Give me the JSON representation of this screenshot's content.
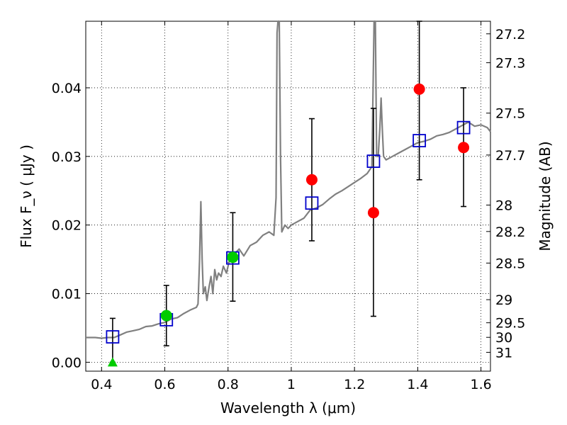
{
  "chart_data": {
    "type": "scatter",
    "title": "",
    "xlabel": "Wavelength  λ (μm)",
    "ylabel": "Flux  F_ν  ( μJy )",
    "y2label": "Magnitude (AB)",
    "xlim": [
      0.35,
      1.63
    ],
    "ylim": [
      -0.0013,
      0.0497
    ],
    "grid": true,
    "x_ticks": [
      {
        "value": 0.4,
        "label": "0.4"
      },
      {
        "value": 0.6,
        "label": "0.6"
      },
      {
        "value": 0.8,
        "label": "0.8"
      },
      {
        "value": 1.0,
        "label": "1"
      },
      {
        "value": 1.2,
        "label": "1.2"
      },
      {
        "value": 1.4,
        "label": "1.4"
      },
      {
        "value": 1.6,
        "label": "1.6"
      }
    ],
    "y_ticks": [
      {
        "value": 0.0,
        "label": "0.00"
      },
      {
        "value": 0.01,
        "label": "0.01"
      },
      {
        "value": 0.02,
        "label": "0.02"
      },
      {
        "value": 0.03,
        "label": "0.03"
      },
      {
        "value": 0.04,
        "label": "0.04"
      }
    ],
    "mag_ticks": [
      {
        "mag": 27.2,
        "label": "27.2"
      },
      {
        "mag": 27.3,
        "label": "27.3"
      },
      {
        "mag": 27.5,
        "label": "27.5"
      },
      {
        "mag": 27.7,
        "label": "27.7"
      },
      {
        "mag": 28.0,
        "label": "28"
      },
      {
        "mag": 28.2,
        "label": "28.2"
      },
      {
        "mag": 28.5,
        "label": "28.5"
      },
      {
        "mag": 29.0,
        "label": "29"
      },
      {
        "mag": 29.5,
        "label": "29.5"
      },
      {
        "mag": 30.0,
        "label": "30"
      },
      {
        "mag": 31.0,
        "label": "31"
      }
    ],
    "model_sed": {
      "color": "#808080",
      "points": [
        [
          0.35,
          0.0036
        ],
        [
          0.38,
          0.0036
        ],
        [
          0.4,
          0.0035
        ],
        [
          0.42,
          0.0036
        ],
        [
          0.44,
          0.0036
        ],
        [
          0.46,
          0.004
        ],
        [
          0.48,
          0.0044
        ],
        [
          0.5,
          0.0046
        ],
        [
          0.52,
          0.0048
        ],
        [
          0.54,
          0.0052
        ],
        [
          0.56,
          0.0053
        ],
        [
          0.58,
          0.0056
        ],
        [
          0.6,
          0.0058
        ],
        [
          0.62,
          0.0063
        ],
        [
          0.64,
          0.0065
        ],
        [
          0.66,
          0.0071
        ],
        [
          0.68,
          0.0076
        ],
        [
          0.7,
          0.008
        ],
        [
          0.705,
          0.0085
        ],
        [
          0.71,
          0.015
        ],
        [
          0.714,
          0.0234
        ],
        [
          0.718,
          0.015
        ],
        [
          0.722,
          0.01
        ],
        [
          0.728,
          0.011
        ],
        [
          0.733,
          0.009
        ],
        [
          0.74,
          0.011
        ],
        [
          0.746,
          0.0125
        ],
        [
          0.752,
          0.01
        ],
        [
          0.758,
          0.0135
        ],
        [
          0.764,
          0.012
        ],
        [
          0.77,
          0.013
        ],
        [
          0.778,
          0.0125
        ],
        [
          0.785,
          0.014
        ],
        [
          0.795,
          0.013
        ],
        [
          0.805,
          0.015
        ],
        [
          0.815,
          0.0148
        ],
        [
          0.825,
          0.016
        ],
        [
          0.835,
          0.0165
        ],
        [
          0.85,
          0.0155
        ],
        [
          0.87,
          0.017
        ],
        [
          0.89,
          0.0175
        ],
        [
          0.91,
          0.0185
        ],
        [
          0.93,
          0.019
        ],
        [
          0.945,
          0.0185
        ],
        [
          0.952,
          0.024
        ],
        [
          0.955,
          0.048
        ],
        [
          0.958,
          0.0497
        ],
        [
          0.962,
          0.0497
        ],
        [
          0.966,
          0.03
        ],
        [
          0.97,
          0.019
        ],
        [
          0.98,
          0.02
        ],
        [
          0.99,
          0.0195
        ],
        [
          1.0,
          0.02
        ],
        [
          1.02,
          0.0205
        ],
        [
          1.04,
          0.021
        ],
        [
          1.06,
          0.0222
        ],
        [
          1.08,
          0.0225
        ],
        [
          1.1,
          0.023
        ],
        [
          1.12,
          0.0238
        ],
        [
          1.14,
          0.0245
        ],
        [
          1.16,
          0.025
        ],
        [
          1.18,
          0.0256
        ],
        [
          1.2,
          0.0262
        ],
        [
          1.22,
          0.0268
        ],
        [
          1.24,
          0.0275
        ],
        [
          1.255,
          0.0285
        ],
        [
          1.262,
          0.0497
        ],
        [
          1.266,
          0.0497
        ],
        [
          1.27,
          0.03
        ],
        [
          1.275,
          0.03
        ],
        [
          1.28,
          0.034
        ],
        [
          1.284,
          0.0385
        ],
        [
          1.288,
          0.034
        ],
        [
          1.292,
          0.03
        ],
        [
          1.3,
          0.0295
        ],
        [
          1.32,
          0.03
        ],
        [
          1.34,
          0.0305
        ],
        [
          1.36,
          0.031
        ],
        [
          1.38,
          0.0315
        ],
        [
          1.4,
          0.032
        ],
        [
          1.42,
          0.0322
        ],
        [
          1.44,
          0.0325
        ],
        [
          1.46,
          0.033
        ],
        [
          1.48,
          0.0332
        ],
        [
          1.5,
          0.0335
        ],
        [
          1.52,
          0.034
        ],
        [
          1.54,
          0.0345
        ],
        [
          1.56,
          0.035
        ],
        [
          1.58,
          0.0344
        ],
        [
          1.6,
          0.0346
        ],
        [
          1.62,
          0.0342
        ],
        [
          1.63,
          0.0336
        ]
      ]
    },
    "series": [
      {
        "marker": "square",
        "color": "#0000cc",
        "points": [
          {
            "x": 0.435,
            "y": 0.0037
          },
          {
            "x": 0.605,
            "y": 0.0062
          },
          {
            "x": 0.815,
            "y": 0.0152
          },
          {
            "x": 1.065,
            "y": 0.0232
          },
          {
            "x": 1.26,
            "y": 0.0293
          },
          {
            "x": 1.405,
            "y": 0.0323
          },
          {
            "x": 1.545,
            "y": 0.0342
          }
        ]
      },
      {
        "marker": "circle",
        "color": "#ff0000",
        "points": [
          {
            "x": 1.065,
            "y": 0.0266,
            "yerr_low": 0.0177,
            "yerr_high": 0.0355
          },
          {
            "x": 1.26,
            "y": 0.0218,
            "yerr_low": 0.0067,
            "yerr_high": 0.037
          },
          {
            "x": 1.405,
            "y": 0.0398,
            "yerr_low": 0.0266,
            "yerr_high": 0.0497
          },
          {
            "x": 1.545,
            "y": 0.0313,
            "yerr_low": 0.0227,
            "yerr_high": 0.04
          }
        ]
      },
      {
        "marker": "circle",
        "color": "#00cc00",
        "points": [
          {
            "x": 0.605,
            "y": 0.0068,
            "yerr_low": 0.0024,
            "yerr_high": 0.0112
          },
          {
            "x": 0.815,
            "y": 0.0153,
            "yerr_low": 0.0089,
            "yerr_high": 0.0218
          }
        ]
      },
      {
        "marker": "triangle",
        "color": "#00cc00",
        "points": [
          {
            "x": 0.435,
            "y": 0.0,
            "yerr_low": 0.0,
            "yerr_high": 0.0064
          }
        ]
      }
    ]
  }
}
